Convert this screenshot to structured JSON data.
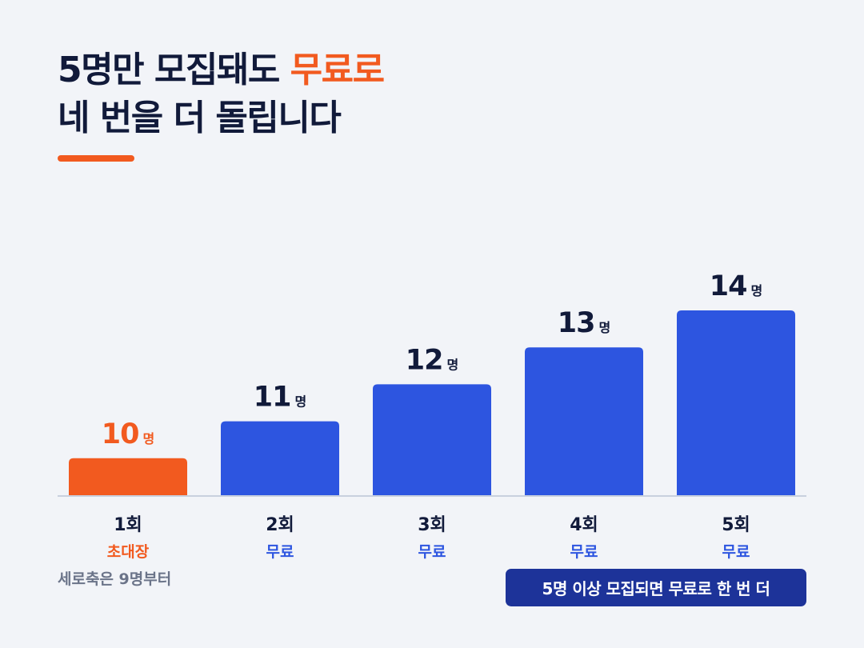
{
  "title": {
    "line1_prefix": "5명만 모집돼도 ",
    "line1_accent": "무료로",
    "line2": "네 번을 더 돌립니다"
  },
  "colors": {
    "accent": "#f25a1f",
    "bar_primary": "#2d55e0",
    "text_dark": "#111a3a",
    "banner_bg": "#1d3399",
    "baseline": "#c9d0de",
    "sub_note": "#6b7489"
  },
  "chart_data": {
    "type": "bar",
    "categories": [
      "1회",
      "2회",
      "3회",
      "4회",
      "5회"
    ],
    "values": [
      10,
      11,
      12,
      13,
      14
    ],
    "unit": "명",
    "value_labels": [
      "10",
      "11",
      "12",
      "13",
      "14"
    ],
    "sublabels": [
      "초대장",
      "무료",
      "무료",
      "무료",
      "무료"
    ],
    "highlight_index": 0,
    "ylim": [
      9,
      14
    ],
    "grid": false,
    "title": "",
    "xlabel": "",
    "ylabel": ""
  },
  "notes": {
    "sub_note": "세로축은 9명부터",
    "banner": "5명 이상 모집되면 무료로 한 번 더"
  }
}
